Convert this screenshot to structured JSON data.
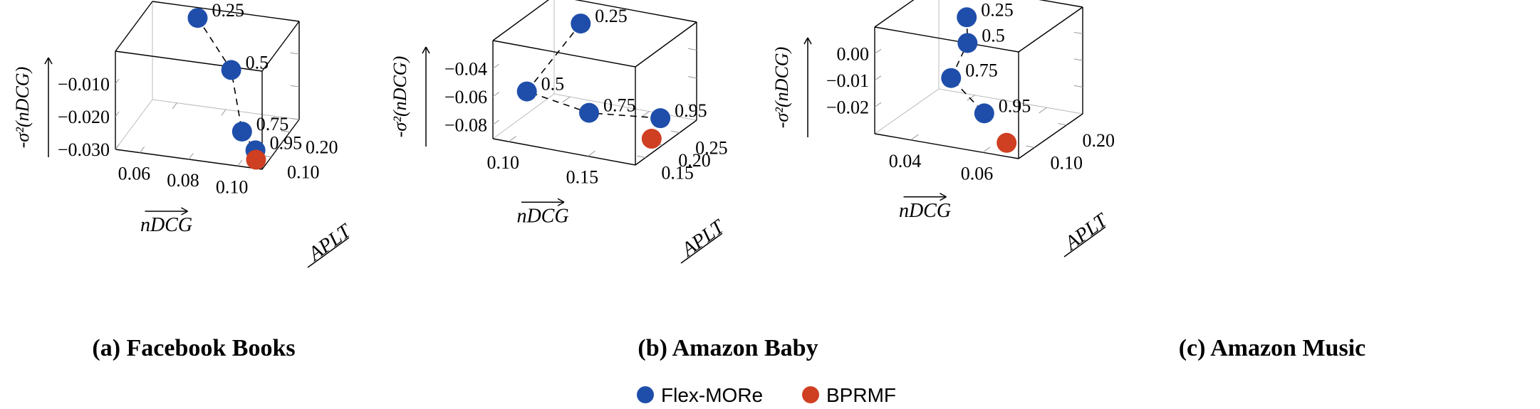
{
  "legend": {
    "items": [
      {
        "label": "Flex-MORe",
        "color": "#1f4eaa"
      },
      {
        "label": "BPRMF",
        "color": "#cf3f22"
      }
    ]
  },
  "colors": {
    "flex": "#1f4eaa",
    "bprmf": "#cf3f22",
    "axis": "#000000",
    "grid": "#999999"
  },
  "axis_labels": {
    "x": "nDCG",
    "y": "APLT",
    "z": "-σ²(nDCG)"
  },
  "chart_data": [
    {
      "type": "scatter3d",
      "caption": "(a) Facebook Books",
      "xlabel": "nDCG",
      "ylabel": "APLT",
      "zlabel": "-σ²(nDCG)",
      "xlim": [
        0.05,
        0.11
      ],
      "ylim": [
        0.05,
        0.25
      ],
      "zlim": [
        -0.03,
        0.0
      ],
      "xticks": [
        {
          "v": 0.06,
          "label": "0.06"
        },
        {
          "v": 0.08,
          "label": "0.08"
        },
        {
          "v": 0.1,
          "label": "0.10"
        }
      ],
      "yticks": [
        {
          "v": 0.1,
          "label": "0.10"
        },
        {
          "v": 0.2,
          "label": "0.20"
        }
      ],
      "zticks": [
        {
          "v": -0.03,
          "label": "−0.030"
        },
        {
          "v": -0.02,
          "label": "−0.020"
        },
        {
          "v": -0.01,
          "label": "−0.010"
        }
      ],
      "series": [
        {
          "name": "Flex-MORe",
          "connected": true,
          "points": [
            {
              "x": 0.07,
              "y": 0.23,
              "z": -0.0015,
              "label": "0.25"
            },
            {
              "x": 0.086,
              "y": 0.2,
              "z": -0.0135,
              "label": "0.5"
            },
            {
              "x": 0.098,
              "y": 0.1,
              "z": -0.0235,
              "label": "0.75"
            },
            {
              "x": 0.105,
              "y": 0.08,
              "z": -0.027,
              "label": "0.95"
            }
          ]
        },
        {
          "name": "BPRMF",
          "connected": false,
          "points": [
            {
              "x": 0.106,
              "y": 0.07,
              "z": -0.029,
              "label": ""
            }
          ]
        }
      ]
    },
    {
      "type": "scatter3d",
      "caption": "(b) Amazon Baby",
      "xlabel": "nDCG",
      "ylabel": "APLT",
      "zlabel": "-σ²(nDCG)",
      "xlim": [
        0.09,
        0.18
      ],
      "ylim": [
        0.12,
        0.3
      ],
      "zlim": [
        -0.09,
        -0.02
      ],
      "xticks": [
        {
          "v": 0.1,
          "label": "0.10"
        },
        {
          "v": 0.15,
          "label": "0.15"
        }
      ],
      "yticks": [
        {
          "v": 0.15,
          "label": "0.15"
        },
        {
          "v": 0.2,
          "label": "0.20"
        },
        {
          "v": 0.25,
          "label": "0.25"
        }
      ],
      "zticks": [
        {
          "v": -0.08,
          "label": "−0.08"
        },
        {
          "v": -0.06,
          "label": "−0.06"
        },
        {
          "v": -0.04,
          "label": "−0.04"
        }
      ],
      "series": [
        {
          "name": "Flex-MORe",
          "connected": true,
          "points": [
            {
              "x": 0.11,
              "y": 0.285,
              "z": -0.033,
              "label": "0.25"
            },
            {
              "x": 0.105,
              "y": 0.15,
              "z": -0.0585,
              "label": "0.5"
            },
            {
              "x": 0.14,
              "y": 0.17,
              "z": -0.07,
              "label": "0.75"
            },
            {
              "x": 0.17,
              "y": 0.24,
              "z": -0.08,
              "label": "0.95"
            }
          ]
        },
        {
          "name": "BPRMF",
          "connected": false,
          "points": [
            {
              "x": 0.172,
              "y": 0.205,
              "z": -0.088,
              "label": ""
            }
          ]
        }
      ]
    },
    {
      "type": "scatter3d",
      "caption": "(c) Amazon Music",
      "xlabel": "nDCG",
      "ylabel": "APLT",
      "zlabel": "-σ²(nDCG)",
      "xlim": [
        0.03,
        0.07
      ],
      "ylim": [
        0.05,
        0.25
      ],
      "zlim": [
        -0.03,
        0.01
      ],
      "xticks": [
        {
          "v": 0.04,
          "label": "0.04"
        },
        {
          "v": 0.06,
          "label": "0.06"
        }
      ],
      "yticks": [
        {
          "v": 0.1,
          "label": "0.10"
        },
        {
          "v": 0.2,
          "label": "0.20"
        }
      ],
      "zticks": [
        {
          "v": -0.02,
          "label": "−0.02"
        },
        {
          "v": -0.01,
          "label": "−0.01"
        },
        {
          "v": 0.0,
          "label": "0.00"
        }
      ],
      "series": [
        {
          "name": "Flex-MORe",
          "connected": true,
          "points": [
            {
              "x": 0.044,
              "y": 0.18,
              "z": 0.006,
              "label": "0.25"
            },
            {
              "x": 0.046,
              "y": 0.16,
              "z": -0.0015,
              "label": "0.5"
            },
            {
              "x": 0.045,
              "y": 0.12,
              "z": -0.0115,
              "label": "0.75"
            },
            {
              "x": 0.056,
              "y": 0.1,
              "z": -0.0205,
              "label": "0.95"
            }
          ]
        },
        {
          "name": "BPRMF",
          "connected": false,
          "points": [
            {
              "x": 0.064,
              "y": 0.08,
              "z": -0.028,
              "label": ""
            }
          ]
        }
      ]
    }
  ]
}
